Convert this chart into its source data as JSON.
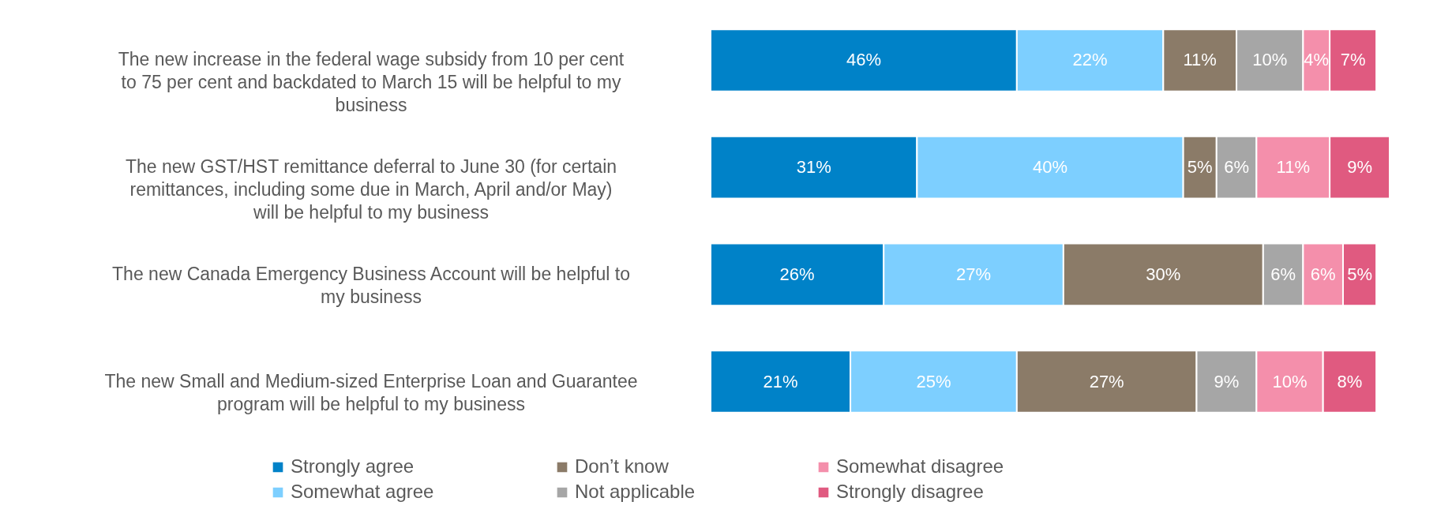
{
  "chart_data": {
    "type": "bar",
    "orientation": "horizontal",
    "stacked": true,
    "legend": "bottom",
    "categories": [
      "The new increase in the federal wage subsidy from 10 per cent to 75 per cent and backdated to March 15 will be helpful to my business",
      "The new GST/HST remittance deferral to June 30 (for certain remittances, including some due in March, April and/or May) will be helpful to my business",
      "The new Canada Emergency Business Account will be helpful to my business",
      "The new Small and Medium-sized Enterprise Loan and Guarantee program will be helpful to my business"
    ],
    "series": [
      {
        "name": "Strongly agree",
        "color": "#0082c8",
        "values": [
          46,
          31,
          26,
          21
        ],
        "value_labels": [
          "46%",
          "31%",
          "26%",
          "21%"
        ]
      },
      {
        "name": "Somewhat agree",
        "color": "#7dcfff",
        "values": [
          22,
          40,
          27,
          25
        ],
        "value_labels": [
          "22%",
          "40%",
          "27%",
          "25%"
        ]
      },
      {
        "name": "Don’t know",
        "color": "#8b7b68",
        "values": [
          11,
          5,
          30,
          27
        ],
        "value_labels": [
          "11%",
          "5%",
          "30%",
          "27%"
        ]
      },
      {
        "name": "Not applicable",
        "color": "#a6a6a6",
        "values": [
          10,
          6,
          6,
          9
        ],
        "value_labels": [
          "10%",
          "6%",
          "6%",
          "9%"
        ]
      },
      {
        "name": "Somewhat disagree",
        "color": "#f48fab",
        "values": [
          4,
          11,
          6,
          10
        ],
        "value_labels": [
          "4%",
          "11%",
          "6%",
          "10%"
        ]
      },
      {
        "name": "Strongly disagree",
        "color": "#e05a80",
        "values": [
          7,
          9,
          5,
          8
        ],
        "value_labels": [
          "7%",
          "9%",
          "5%",
          "8%"
        ]
      }
    ]
  }
}
